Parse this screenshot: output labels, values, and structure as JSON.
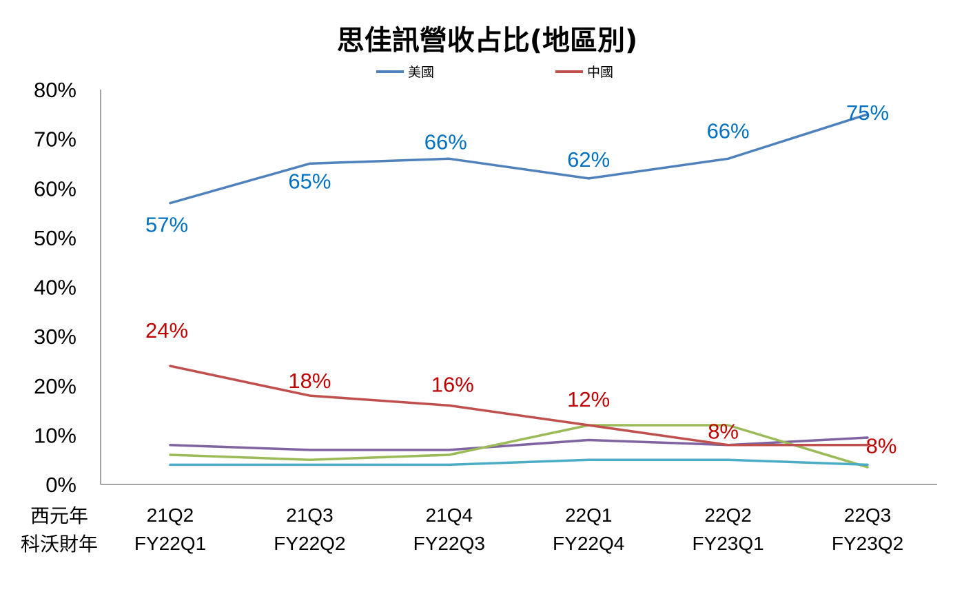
{
  "chart_data": {
    "type": "line",
    "title": "思佳訊營收占比(地區別)",
    "x_row_labels": [
      "西元年",
      "科沃財年"
    ],
    "categories": [
      "21Q2",
      "21Q3",
      "21Q4",
      "22Q1",
      "22Q2",
      "22Q3"
    ],
    "categories_fiscal": [
      "FY22Q1",
      "FY22Q2",
      "FY22Q3",
      "FY22Q4",
      "FY23Q1",
      "FY23Q2"
    ],
    "ylim": [
      0,
      80
    ],
    "yticks": [
      "0%",
      "10%",
      "20%",
      "30%",
      "40%",
      "50%",
      "60%",
      "70%",
      "80%"
    ],
    "grid": false,
    "legend_position": "top",
    "series": [
      {
        "name": "美國",
        "color": "#4f81bd",
        "label_color": "#0070c0",
        "values": [
          57,
          65,
          66,
          62,
          66,
          75
        ],
        "labels": [
          "57%",
          "65%",
          "66%",
          "62%",
          "66%",
          "75%"
        ]
      },
      {
        "name": "中國",
        "color": "#c0504d",
        "label_color": "#c00000",
        "values": [
          24,
          18,
          16,
          12,
          8,
          8
        ],
        "labels": [
          "24%",
          "18%",
          "16%",
          "12%",
          "8%",
          "8%"
        ]
      },
      {
        "color": "#8064a2",
        "values": [
          8,
          7,
          7,
          9,
          8,
          9.5
        ]
      },
      {
        "color": "#9bbb59",
        "values": [
          6,
          5,
          6,
          12,
          12,
          3.5
        ]
      },
      {
        "color": "#4bacc6",
        "values": [
          4,
          4,
          4,
          5,
          5,
          4
        ]
      }
    ]
  }
}
